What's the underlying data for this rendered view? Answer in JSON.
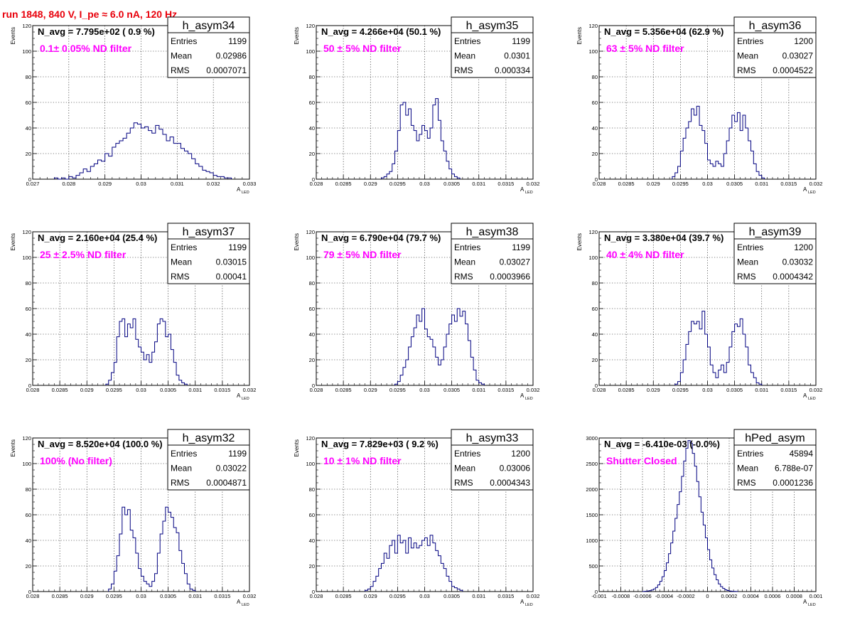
{
  "run_title": "run 1848,   840 V, I_pe ≈ 6.0 nA, 120 Hz",
  "colors": {
    "title": "#e8000b",
    "filter_label": "#ff00ff",
    "histogram_line": "#000080",
    "grid": "#000000"
  },
  "chart_data": [
    {
      "type": "histogram",
      "name": "h_asym34",
      "navg": "N_avg = 7.795e+02 ( 0.9 %)",
      "filter": "0.1± 0.05% ND filter",
      "stats": [
        [
          "Entries",
          "1199"
        ],
        [
          "Mean",
          "0.02986"
        ],
        [
          "RMS",
          "0.0007071"
        ]
      ],
      "xlabel": "A",
      "xlabel_sub": "LED",
      "ylabel": "Events",
      "xlim": [
        0.027,
        0.033
      ],
      "ylim": [
        0,
        120
      ],
      "xticks": [
        0.027,
        0.028,
        0.029,
        0.03,
        0.031,
        0.032,
        0.033
      ],
      "xtick_labels": [
        "0.027",
        "0.028",
        "0.029",
        "0.03",
        "0.031",
        "0.032",
        "0.033"
      ],
      "yticks": [
        0,
        20,
        40,
        60,
        80,
        100,
        120
      ],
      "ytick_labels": [
        "0",
        "20",
        "40",
        "60",
        "80",
        "100",
        "120"
      ],
      "bin_start": 0.0276,
      "bin_width": 0.0001,
      "counts": [
        1,
        0,
        1,
        0,
        2,
        1,
        3,
        5,
        8,
        6,
        10,
        12,
        15,
        14,
        20,
        18,
        25,
        28,
        30,
        32,
        36,
        40,
        44,
        43,
        40,
        41,
        38,
        36,
        42,
        39,
        35,
        30,
        33,
        28,
        28,
        24,
        22,
        20,
        16,
        12,
        10,
        7,
        6,
        5,
        3,
        2,
        2,
        1,
        1
      ]
    },
    {
      "type": "histogram",
      "name": "h_asym35",
      "navg": "N_avg = 4.266e+04 (50.1 %)",
      "filter": "50 ± 5% ND filter",
      "stats": [
        [
          "Entries",
          "1199"
        ],
        [
          "Mean",
          "0.0301"
        ],
        [
          "RMS",
          "0.000334"
        ]
      ],
      "xlabel": "A",
      "xlabel_sub": "LED",
      "ylabel": "Events",
      "xlim": [
        0.028,
        0.032
      ],
      "ylim": [
        0,
        120
      ],
      "xticks": [
        0.028,
        0.0285,
        0.029,
        0.0295,
        0.03,
        0.0305,
        0.031,
        0.0315,
        0.032
      ],
      "xtick_labels": [
        "0.028",
        "0.0285",
        "0.029",
        "0.0295",
        "0.03",
        "0.0305",
        "0.031",
        "0.0315",
        "0.032"
      ],
      "yticks": [
        0,
        20,
        40,
        60,
        80,
        100,
        120
      ],
      "ytick_labels": [
        "0",
        "20",
        "40",
        "60",
        "80",
        "100",
        "120"
      ],
      "bin_start": 0.0292,
      "bin_width": 5e-05,
      "counts": [
        1,
        2,
        4,
        6,
        12,
        22,
        38,
        58,
        60,
        50,
        55,
        42,
        38,
        30,
        35,
        42,
        38,
        32,
        40,
        58,
        63,
        46,
        30,
        22,
        14,
        8,
        4,
        2,
        1
      ]
    },
    {
      "type": "histogram",
      "name": "h_asym36",
      "navg": "N_avg = 5.356e+04 (62.9 %)",
      "filter": "63 ± 5% ND filter",
      "stats": [
        [
          "Entries",
          "1200"
        ],
        [
          "Mean",
          "0.03027"
        ],
        [
          "RMS",
          "0.0004522"
        ]
      ],
      "xlabel": "A",
      "xlabel_sub": "LED",
      "ylabel": "Events",
      "xlim": [
        0.028,
        0.032
      ],
      "ylim": [
        0,
        120
      ],
      "xticks": [
        0.028,
        0.0285,
        0.029,
        0.0295,
        0.03,
        0.0305,
        0.031,
        0.0315,
        0.032
      ],
      "xtick_labels": [
        "0.028",
        "0.0285",
        "0.029",
        "0.0295",
        "0.03",
        "0.0305",
        "0.031",
        "0.0315",
        "0.032"
      ],
      "yticks": [
        0,
        20,
        40,
        60,
        80,
        100,
        120
      ],
      "ytick_labels": [
        "0",
        "20",
        "40",
        "60",
        "80",
        "100",
        "120"
      ],
      "bin_start": 0.02935,
      "bin_width": 5e-05,
      "counts": [
        2,
        5,
        10,
        22,
        32,
        40,
        45,
        55,
        50,
        57,
        42,
        38,
        28,
        15,
        12,
        10,
        14,
        12,
        10,
        20,
        30,
        40,
        50,
        45,
        52,
        38,
        50,
        40,
        30,
        22,
        12,
        6,
        3,
        1
      ]
    },
    {
      "type": "histogram",
      "name": "h_asym37",
      "navg": "N_avg = 2.160e+04 (25.4 %)",
      "filter": "25 ± 2.5% ND filter",
      "stats": [
        [
          "Entries",
          "1199"
        ],
        [
          "Mean",
          "0.03015"
        ],
        [
          "RMS",
          "0.00041"
        ]
      ],
      "xlabel": "A",
      "xlabel_sub": "LED",
      "ylabel": "Events",
      "xlim": [
        0.028,
        0.032
      ],
      "ylim": [
        0,
        120
      ],
      "xticks": [
        0.028,
        0.0285,
        0.029,
        0.0295,
        0.03,
        0.0305,
        0.031,
        0.0315,
        0.032
      ],
      "xtick_labels": [
        "0.028",
        "0.0285",
        "0.029",
        "0.0295",
        "0.03",
        "0.0305",
        "0.031",
        "0.0315",
        "0.032"
      ],
      "yticks": [
        0,
        20,
        40,
        60,
        80,
        100,
        120
      ],
      "ytick_labels": [
        "0",
        "20",
        "40",
        "60",
        "80",
        "100",
        "120"
      ],
      "bin_start": 0.02935,
      "bin_width": 5e-05,
      "counts": [
        1,
        4,
        10,
        18,
        38,
        50,
        52,
        38,
        48,
        45,
        52,
        36,
        30,
        26,
        20,
        24,
        18,
        26,
        34,
        48,
        52,
        50,
        38,
        40,
        28,
        18,
        8,
        4,
        2,
        1
      ]
    },
    {
      "type": "histogram",
      "name": "h_asym38",
      "navg": "N_avg = 6.790e+04 (79.7 %)",
      "filter": "79 ± 5% ND filter",
      "stats": [
        [
          "Entries",
          "1199"
        ],
        [
          "Mean",
          "0.03027"
        ],
        [
          "RMS",
          "0.0003966"
        ]
      ],
      "xlabel": "A",
      "xlabel_sub": "LED",
      "ylabel": "Events",
      "xlim": [
        0.028,
        0.032
      ],
      "ylim": [
        0,
        120
      ],
      "xticks": [
        0.028,
        0.0285,
        0.029,
        0.0295,
        0.03,
        0.0305,
        0.031,
        0.0315,
        0.032
      ],
      "xtick_labels": [
        "0.028",
        "0.0285",
        "0.029",
        "0.0295",
        "0.03",
        "0.0305",
        "0.031",
        "0.0315",
        "0.032"
      ],
      "yticks": [
        0,
        20,
        40,
        60,
        80,
        100,
        120
      ],
      "ytick_labels": [
        "0",
        "20",
        "40",
        "60",
        "80",
        "100",
        "120"
      ],
      "bin_start": 0.02945,
      "bin_width": 5e-05,
      "counts": [
        1,
        3,
        8,
        14,
        20,
        30,
        38,
        45,
        55,
        50,
        60,
        44,
        38,
        36,
        30,
        22,
        16,
        20,
        30,
        40,
        48,
        55,
        50,
        60,
        54,
        58,
        48,
        35,
        22,
        12,
        4,
        2,
        1
      ]
    },
    {
      "type": "histogram",
      "name": "h_asym39",
      "navg": "N_avg = 3.380e+04 (39.7 %)",
      "filter": "40 ± 4% ND filter",
      "stats": [
        [
          "Entries",
          "1200"
        ],
        [
          "Mean",
          "0.03032"
        ],
        [
          "RMS",
          "0.0004342"
        ]
      ],
      "xlabel": "A",
      "xlabel_sub": "LED",
      "ylabel": "Events",
      "xlim": [
        0.028,
        0.032
      ],
      "ylim": [
        0,
        120
      ],
      "xticks": [
        0.028,
        0.0285,
        0.029,
        0.0295,
        0.03,
        0.0305,
        0.031,
        0.0315,
        0.032
      ],
      "xtick_labels": [
        "0.028",
        "0.0285",
        "0.029",
        "0.0295",
        "0.03",
        "0.0305",
        "0.031",
        "0.0315",
        "0.032"
      ],
      "yticks": [
        0,
        20,
        40,
        60,
        80,
        100,
        120
      ],
      "ytick_labels": [
        "0",
        "20",
        "40",
        "60",
        "80",
        "100",
        "120"
      ],
      "bin_start": 0.0294,
      "bin_width": 5e-05,
      "counts": [
        1,
        3,
        10,
        20,
        32,
        42,
        50,
        48,
        50,
        44,
        58,
        40,
        30,
        16,
        10,
        6,
        12,
        16,
        10,
        18,
        30,
        42,
        48,
        46,
        52,
        40,
        30,
        16,
        10,
        6,
        2,
        1
      ]
    },
    {
      "type": "histogram",
      "name": "h_asym32",
      "navg": "N_avg = 8.520e+04 (100.0 %)",
      "filter": "100% (No filter)",
      "stats": [
        [
          "Entries",
          "1199"
        ],
        [
          "Mean",
          "0.03022"
        ],
        [
          "RMS",
          "0.0004871"
        ]
      ],
      "xlabel": "A",
      "xlabel_sub": "LED",
      "ylabel": "Events",
      "xlim": [
        0.028,
        0.032
      ],
      "ylim": [
        0,
        120
      ],
      "xticks": [
        0.028,
        0.0285,
        0.029,
        0.0295,
        0.03,
        0.0305,
        0.031,
        0.0315,
        0.032
      ],
      "xtick_labels": [
        "0.028",
        "0.0285",
        "0.029",
        "0.0295",
        "0.03",
        "0.0305",
        "0.031",
        "0.0315",
        "0.032"
      ],
      "yticks": [
        0,
        20,
        40,
        60,
        80,
        100,
        120
      ],
      "ytick_labels": [
        "0",
        "20",
        "40",
        "60",
        "80",
        "100",
        "120"
      ],
      "bin_start": 0.0294,
      "bin_width": 5e-05,
      "counts": [
        2,
        6,
        16,
        28,
        45,
        66,
        60,
        64,
        48,
        42,
        30,
        18,
        12,
        8,
        6,
        4,
        8,
        14,
        30,
        45,
        55,
        66,
        62,
        58,
        50,
        46,
        32,
        22,
        14,
        6,
        2,
        1
      ]
    },
    {
      "type": "histogram",
      "name": "h_asym33",
      "navg": "N_avg = 7.829e+03 ( 9.2 %)",
      "filter": "10 ± 1% ND filter",
      "stats": [
        [
          "Entries",
          "1200"
        ],
        [
          "Mean",
          "0.03006"
        ],
        [
          "RMS",
          "0.0004343"
        ]
      ],
      "xlabel": "A",
      "xlabel_sub": "LED",
      "ylabel": "Events",
      "xlim": [
        0.028,
        0.032
      ],
      "ylim": [
        0,
        120
      ],
      "xticks": [
        0.028,
        0.0285,
        0.029,
        0.0295,
        0.03,
        0.0305,
        0.031,
        0.0315,
        0.032
      ],
      "xtick_labels": [
        "0.028",
        "0.0285",
        "0.029",
        "0.0295",
        "0.03",
        "0.0305",
        "0.031",
        "0.0315",
        "0.032"
      ],
      "yticks": [
        0,
        20,
        40,
        60,
        80,
        100,
        120
      ],
      "ytick_labels": [
        "0",
        "20",
        "40",
        "60",
        "80",
        "100",
        "120"
      ],
      "bin_start": 0.0289,
      "bin_width": 5e-05,
      "counts": [
        1,
        2,
        4,
        8,
        12,
        18,
        22,
        30,
        26,
        36,
        40,
        30,
        44,
        38,
        40,
        30,
        42,
        34,
        38,
        34,
        36,
        40,
        42,
        36,
        44,
        38,
        32,
        28,
        22,
        18,
        12,
        8,
        4,
        3,
        2,
        1
      ]
    },
    {
      "type": "histogram",
      "name": "hPed_asym",
      "navg": "N_avg = -6.410e-03 (-0.0%)",
      "filter": "Shutter Closed",
      "stats": [
        [
          "Entries",
          "45894"
        ],
        [
          "Mean",
          "6.788e-07"
        ],
        [
          "RMS",
          "0.0001236"
        ]
      ],
      "xlabel": "A",
      "xlabel_sub": "LED",
      "ylabel": "",
      "xlim": [
        -0.001,
        0.001
      ],
      "ylim": [
        0,
        3000
      ],
      "xticks": [
        -0.001,
        -0.0008,
        -0.0006,
        -0.0004,
        -0.0002,
        0,
        0.0002,
        0.0004,
        0.0006,
        0.0008,
        0.001
      ],
      "xtick_labels": [
        "-0.001",
        "-0.0008",
        "-0.0006",
        "-0.0004",
        "-0.0002",
        "0",
        "0.0002",
        "0.0004",
        "0.0006",
        "0.0008",
        "0.001"
      ],
      "yticks": [
        0,
        500,
        1000,
        1500,
        2000,
        2500,
        3000
      ],
      "ytick_labels": [
        "0",
        "500",
        "1000",
        "1500",
        "2000",
        "2500",
        "3000"
      ],
      "bin_start": -0.0006,
      "bin_width": 2e-05,
      "counts": [
        2,
        5,
        10,
        18,
        30,
        50,
        80,
        130,
        200,
        290,
        410,
        560,
        740,
        950,
        1180,
        1430,
        1700,
        1950,
        2250,
        2550,
        2800,
        2950,
        2900,
        2700,
        2450,
        2150,
        1850,
        1550,
        1300,
        1050,
        820,
        620,
        460,
        330,
        230,
        150,
        95,
        60,
        35,
        20,
        10,
        6,
        3,
        2
      ]
    }
  ]
}
